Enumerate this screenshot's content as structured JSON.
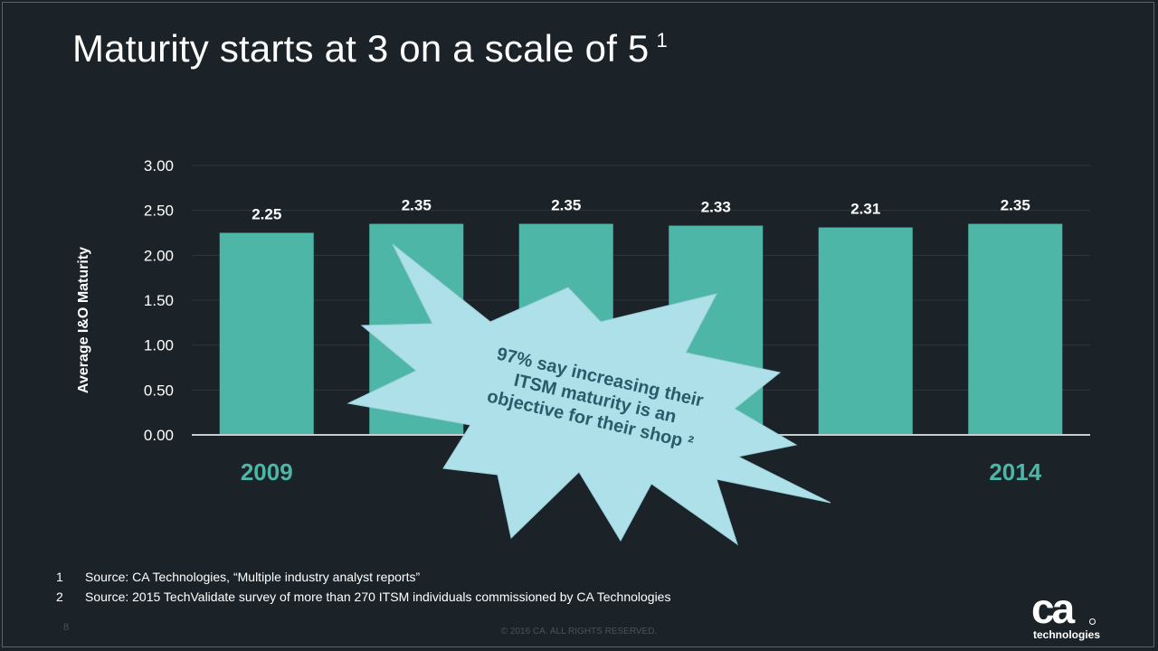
{
  "slide": {
    "title": "Maturity starts at 3 on a scale of 5",
    "title_note": "1",
    "slide_number": "8",
    "copyright": "© 2016 CA. ALL RIGHTS RESERVED.",
    "footnotes": [
      {
        "num": "1",
        "text": "Source: CA Technologies, “Multiple industry analyst reports”"
      },
      {
        "num": "2",
        "text": "Source: 2015 TechValidate survey of more than 270 ITSM individuals commissioned by CA Technologies"
      }
    ],
    "logo": {
      "mark": "ca",
      "word": "technologies"
    }
  },
  "callout": {
    "lines": [
      "97% say increasing their",
      "ITSM maturity is an",
      "objective for their shop ²"
    ]
  },
  "chart_data": {
    "type": "bar",
    "categories": [
      "2009",
      "",
      "",
      "",
      "",
      "2014"
    ],
    "values": [
      2.25,
      2.35,
      2.35,
      2.33,
      2.31,
      2.35
    ],
    "data_labels": [
      "2.25",
      "2.35",
      "2.35",
      "2.33",
      "2.31",
      "2.35"
    ],
    "ylabel": "Average I&O Maturity",
    "ylim": [
      0,
      3
    ],
    "yticks": [
      "0.00",
      "0.50",
      "1.00",
      "1.50",
      "2.00",
      "2.50",
      "3.00"
    ],
    "grid": true,
    "colors": {
      "bar": "#4db6a6",
      "category_label": "#4db6a6",
      "callout_fill": "#aee0ea",
      "callout_text": "#2b5a6a",
      "grid": "#2e373d"
    }
  }
}
